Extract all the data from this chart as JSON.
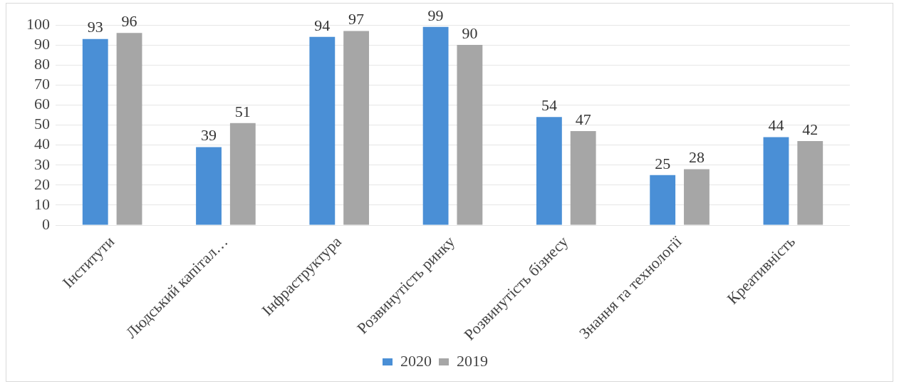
{
  "chart_data": {
    "type": "bar",
    "categories": [
      "Інститути",
      "Людський капітал…",
      "Інфраструктура",
      "Розвинутість ринку",
      "Розвинутість бізнесу",
      "Знання та технології",
      "Креативність"
    ],
    "series": [
      {
        "name": "2020",
        "color": "#4a8fd6",
        "values": [
          93,
          39,
          94,
          99,
          54,
          25,
          44
        ]
      },
      {
        "name": "2019",
        "color": "#a6a6a6",
        "values": [
          96,
          51,
          97,
          90,
          47,
          28,
          42
        ]
      }
    ],
    "ylim": [
      0,
      100
    ],
    "yticks": [
      0,
      10,
      20,
      30,
      40,
      50,
      60,
      70,
      80,
      90,
      100
    ],
    "grid": "y",
    "legend": "bottom",
    "data_labels": true
  }
}
